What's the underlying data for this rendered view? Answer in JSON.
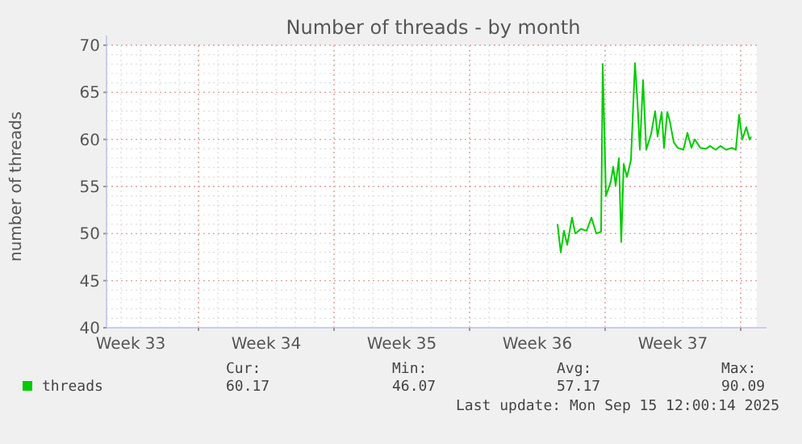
{
  "chart_data": {
    "type": "line",
    "title": "Number of threads - by month",
    "ylabel": "number of threads",
    "xlim": [
      "2025-08-13T06:00",
      "2025-09-15T20:00"
    ],
    "xticks": [
      {
        "value": "2025-08-14T12:00",
        "label": "Week 33"
      },
      {
        "value": "2025-08-18",
        "label": null
      },
      {
        "value": "2025-08-21T12:00",
        "label": "Week 34"
      },
      {
        "value": "2025-08-25",
        "label": null
      },
      {
        "value": "2025-08-28T12:00",
        "label": "Week 35"
      },
      {
        "value": "2025-09-01",
        "label": null
      },
      {
        "value": "2025-09-04T12:00",
        "label": "Week 36"
      },
      {
        "value": "2025-09-08",
        "label": null
      },
      {
        "value": "2025-09-11T12:00",
        "label": "Week 37"
      },
      {
        "value": "2025-09-15",
        "label": null
      }
    ],
    "ylim": [
      40,
      70
    ],
    "yticks": [
      40,
      45,
      50,
      55,
      60,
      65,
      70
    ],
    "grid": true,
    "legend": "bottom left",
    "x": [
      "2025-09-05T13:00",
      "2025-09-05T17:00",
      "2025-09-05T21:00",
      "2025-09-06T01:00",
      "2025-09-06T07:00",
      "2025-09-06T11:00",
      "2025-09-06T18:00",
      "2025-09-07T01:00",
      "2025-09-07T07:00",
      "2025-09-07T13:00",
      "2025-09-07T19:00",
      "2025-09-07T21:00",
      "2025-09-08T01:00",
      "2025-09-08T07:00",
      "2025-09-08T10:00",
      "2025-09-08T13:00",
      "2025-09-08T17:00",
      "2025-09-08T20:00",
      "2025-09-08T23:00",
      "2025-09-09T03:00",
      "2025-09-09T08:00",
      "2025-09-09T13:00",
      "2025-09-09T16:00",
      "2025-09-09T19:00",
      "2025-09-09T23:00",
      "2025-09-10T03:00",
      "2025-09-10T09:00",
      "2025-09-10T14:00",
      "2025-09-10T17:00",
      "2025-09-10T22:00",
      "2025-09-11T01:00",
      "2025-09-11T05:00",
      "2025-09-11T08:00",
      "2025-09-11T13:00",
      "2025-09-11T18:00",
      "2025-09-12T01:00",
      "2025-09-12T06:00",
      "2025-09-12T11:00",
      "2025-09-12T15:00",
      "2025-09-12T22:00",
      "2025-09-13T05:00",
      "2025-09-13T10:00",
      "2025-09-13T17:00",
      "2025-09-13T23:00",
      "2025-09-14T06:00",
      "2025-09-14T13:00",
      "2025-09-14T18:00",
      "2025-09-14T22:00",
      "2025-09-15T02:00",
      "2025-09-15T07:00",
      "2025-09-15T11:00",
      "2025-09-15T13:00"
    ],
    "series": [
      {
        "name": "threads",
        "color": "#00cc00",
        "values": [
          51.0,
          48.0,
          50.3,
          48.8,
          51.7,
          50.0,
          50.5,
          50.3,
          51.7,
          50.0,
          50.2,
          68.0,
          54.0,
          55.5,
          57.1,
          55.1,
          58.0,
          49.1,
          57.4,
          56.0,
          57.8,
          68.1,
          64.0,
          58.9,
          66.3,
          58.9,
          60.6,
          63.0,
          60.3,
          62.9,
          59.1,
          62.9,
          62.0,
          59.7,
          59.1,
          58.9,
          60.7,
          59.1,
          60.0,
          59.1,
          59.0,
          59.3,
          58.9,
          59.3,
          58.9,
          59.1,
          58.9,
          62.6,
          60.0,
          61.3,
          60.0,
          60.3
        ]
      }
    ],
    "annotations": [
      "Cur:",
      "Min:",
      "Avg:",
      "Max:",
      "60.17",
      "46.07",
      "57.17",
      "90.09",
      "Last update: Mon Sep 15 12:00:14 2025"
    ]
  }
}
